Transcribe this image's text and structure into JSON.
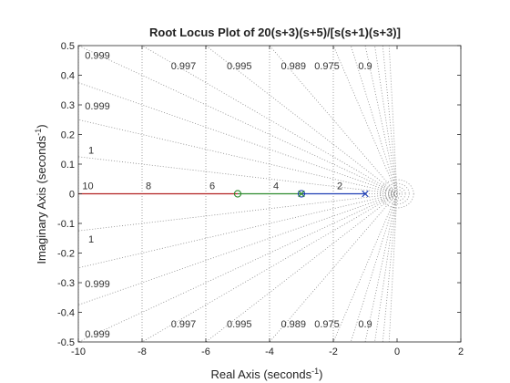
{
  "chart_data": {
    "type": "line",
    "title": "Root Locus Plot of 20(s+3)(s+5)/[s(s+1)(s+3)]",
    "xlabel": "Real Axis (seconds",
    "ylabel": "Imaginary Axis (seconds",
    "label_exponent": "-1",
    "label_close": ")",
    "xlim": [
      -10,
      2
    ],
    "ylim": [
      -0.5,
      0.5
    ],
    "x_ticks": [
      "-10",
      "-8",
      "-6",
      "-4",
      "-2",
      "0",
      "2"
    ],
    "y_ticks": [
      "0.5",
      "0.4",
      "0.3",
      "0.2",
      "0.1",
      "0",
      "-0.1",
      "-0.2",
      "-0.3",
      "-0.4",
      "-0.5"
    ],
    "grid": true,
    "damping_labels": {
      "top": [
        {
          "text": "0.999",
          "x": -9.4,
          "y": 0.455
        },
        {
          "text": "0.997",
          "x": -6.7,
          "y": 0.42
        },
        {
          "text": "0.995",
          "x": -4.95,
          "y": 0.42
        },
        {
          "text": "0.989",
          "x": -3.25,
          "y": 0.42
        },
        {
          "text": "0.975",
          "x": -2.2,
          "y": 0.42
        },
        {
          "text": "0.9",
          "x": -1.0,
          "y": 0.42
        },
        {
          "text": "0.999",
          "x": -9.4,
          "y": 0.285
        },
        {
          "text": "1",
          "x": -9.6,
          "y": 0.135
        }
      ],
      "bottom": [
        {
          "text": "1",
          "x": -9.6,
          "y": -0.165
        },
        {
          "text": "0.999",
          "x": -9.4,
          "y": -0.315
        },
        {
          "text": "0.997",
          "x": -6.7,
          "y": -0.45
        },
        {
          "text": "0.995",
          "x": -4.95,
          "y": -0.45
        },
        {
          "text": "0.989",
          "x": -3.25,
          "y": -0.45
        },
        {
          "text": "0.975",
          "x": -2.2,
          "y": -0.45
        },
        {
          "text": "0.9",
          "x": -1.0,
          "y": -0.45
        },
        {
          "text": "0.999",
          "x": -9.4,
          "y": -0.485
        }
      ]
    },
    "natural_freq_labels": [
      {
        "text": "10",
        "x": -9.7
      },
      {
        "text": "8",
        "x": -7.8
      },
      {
        "text": "6",
        "x": -5.8
      },
      {
        "text": "4",
        "x": -3.8
      },
      {
        "text": "2",
        "x": -1.8
      }
    ],
    "series": [
      {
        "color": "#b22222",
        "x": [
          -10,
          -5
        ],
        "y": [
          0,
          0
        ]
      },
      {
        "color": "#2e8b2e",
        "x": [
          -5,
          -3
        ],
        "y": [
          0,
          0
        ]
      },
      {
        "color": "#1f3fb4",
        "x": [
          -3,
          -1
        ],
        "y": [
          0,
          0
        ]
      }
    ],
    "poles": [
      {
        "x": -1,
        "y": 0,
        "color": "#1f3fb4"
      },
      {
        "x": -3,
        "y": 0,
        "color": "#2e8b2e"
      }
    ],
    "zeros": [
      {
        "x": -3,
        "y": 0,
        "color": "#1f3fb4"
      },
      {
        "x": -5,
        "y": 0,
        "color": "#2e8b2e"
      }
    ]
  }
}
